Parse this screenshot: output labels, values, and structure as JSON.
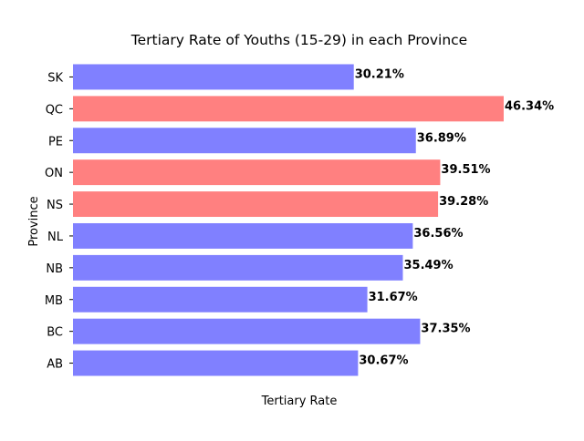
{
  "chart_data": {
    "type": "bar",
    "orientation": "horizontal",
    "title": "Tertiary Rate of Youths (15-29) in each Province",
    "xlabel": "Tertiary Rate",
    "ylabel": "Province",
    "categories": [
      "AB",
      "BC",
      "MB",
      "NB",
      "NL",
      "NS",
      "ON",
      "PE",
      "QC",
      "SK"
    ],
    "values": [
      30.67,
      37.35,
      31.67,
      35.49,
      36.56,
      39.28,
      39.51,
      36.89,
      46.34,
      30.21
    ],
    "data_labels": [
      "30.67%",
      "37.35%",
      "31.67%",
      "35.49%",
      "36.56%",
      "39.28%",
      "39.51%",
      "36.89%",
      "46.34%",
      "30.21%"
    ],
    "bar_colors": [
      "#8080ff",
      "#8080ff",
      "#8080ff",
      "#8080ff",
      "#8080ff",
      "#ff8080",
      "#ff8080",
      "#8080ff",
      "#ff8080",
      "#8080ff"
    ],
    "xlim": [
      0,
      46.34
    ],
    "x_ticks_visible": false,
    "grid": false,
    "legend": "none"
  }
}
